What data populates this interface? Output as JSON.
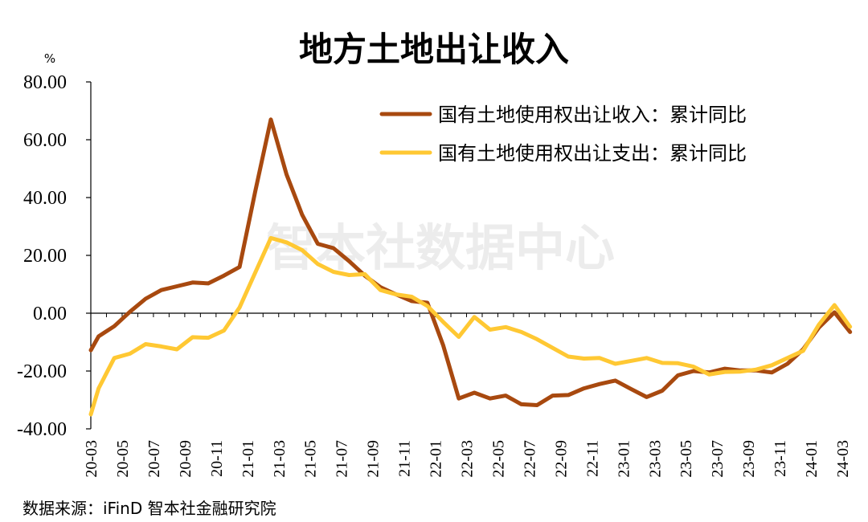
{
  "chart_data": {
    "type": "line",
    "title": "地方土地出让收入",
    "ylabel": "%",
    "xlabel": "",
    "ylim": [
      -40,
      80
    ],
    "yticks": [
      80,
      60,
      40,
      20,
      0,
      -20,
      -40
    ],
    "yticklabels": [
      "80.00",
      "60.00",
      "40.00",
      "20.00",
      "0.00",
      "-20.00",
      "-40.00"
    ],
    "xticklabels": [
      "20-03",
      "20-05",
      "20-07",
      "20-09",
      "20-11",
      "21-01",
      "21-03",
      "21-05",
      "21-07",
      "21-09",
      "21-11",
      "22-01",
      "22-03",
      "22-05",
      "22-07",
      "22-09",
      "22-11",
      "23-01",
      "23-03",
      "23-05",
      "23-07",
      "23-09",
      "23-11",
      "24-01",
      "24-03"
    ],
    "legend_position": "top-right",
    "grid": false,
    "series": [
      {
        "name": "国有土地使用权出让收入：累计同比",
        "color": "#A8490F",
        "points": [
          [
            0,
            -12.8
          ],
          [
            0.5,
            -8
          ],
          [
            1.5,
            -4.5
          ],
          [
            2.5,
            0.5
          ],
          [
            3.5,
            5
          ],
          [
            4.5,
            8
          ],
          [
            5.5,
            9.3
          ],
          [
            6.5,
            10.6
          ],
          [
            7.5,
            10.3
          ],
          [
            8.5,
            13
          ],
          [
            9.5,
            16
          ],
          [
            10.5,
            42
          ],
          [
            11.5,
            67
          ],
          [
            12.5,
            48
          ],
          [
            13.5,
            34
          ],
          [
            14.5,
            24
          ],
          [
            15.5,
            22.5
          ],
          [
            16.5,
            18
          ],
          [
            17.5,
            13
          ],
          [
            18.5,
            9
          ],
          [
            19.5,
            6.5
          ],
          [
            20.5,
            4.2
          ],
          [
            21.5,
            3.6
          ],
          [
            22.5,
            -11
          ],
          [
            23.5,
            -29.5
          ],
          [
            24.5,
            -27.5
          ],
          [
            25.5,
            -29.5
          ],
          [
            26.5,
            -28.5
          ],
          [
            27.5,
            -31.5
          ],
          [
            28.5,
            -31.8
          ],
          [
            29.5,
            -28.5
          ],
          [
            30.5,
            -28.3
          ],
          [
            31.5,
            -26
          ],
          [
            32.5,
            -24.5
          ],
          [
            33.5,
            -23.3
          ],
          [
            34.5,
            -26.2
          ],
          [
            35.5,
            -29
          ],
          [
            36.5,
            -26.8
          ],
          [
            37.5,
            -21.5
          ],
          [
            38.5,
            -20
          ],
          [
            39.5,
            -20.5
          ],
          [
            40.5,
            -19.2
          ],
          [
            41.5,
            -19.8
          ],
          [
            42.5,
            -19.8
          ],
          [
            43.5,
            -20.5
          ],
          [
            44.5,
            -17.5
          ],
          [
            45.5,
            -12.5
          ],
          [
            46.5,
            -5
          ],
          [
            47.5,
            0.3
          ],
          [
            48.5,
            -6.5
          ]
        ]
      },
      {
        "name": "国有土地使用权出让支出：累计同比",
        "color": "#FFC833",
        "points": [
          [
            0,
            -35
          ],
          [
            0.5,
            -26
          ],
          [
            1.5,
            -15.5
          ],
          [
            2.5,
            -14
          ],
          [
            3.5,
            -10.7
          ],
          [
            4.5,
            -11.5
          ],
          [
            5.5,
            -12.5
          ],
          [
            6.5,
            -8.3
          ],
          [
            7.5,
            -8.5
          ],
          [
            8.5,
            -6
          ],
          [
            9.5,
            2
          ],
          [
            10.5,
            14
          ],
          [
            11.5,
            26
          ],
          [
            12.5,
            24.5
          ],
          [
            13.5,
            21.8
          ],
          [
            14.5,
            17
          ],
          [
            15.5,
            14.3
          ],
          [
            16.5,
            13.2
          ],
          [
            17.5,
            13.5
          ],
          [
            18.5,
            8
          ],
          [
            19.5,
            6.5
          ],
          [
            20.5,
            5.7
          ],
          [
            21.5,
            2.5
          ],
          [
            22.5,
            -3
          ],
          [
            23.5,
            -8.2
          ],
          [
            24.5,
            -1.3
          ],
          [
            25.5,
            -5.7
          ],
          [
            26.5,
            -4.8
          ],
          [
            27.5,
            -6.5
          ],
          [
            28.5,
            -9
          ],
          [
            29.5,
            -12
          ],
          [
            30.5,
            -15
          ],
          [
            31.5,
            -15.7
          ],
          [
            32.5,
            -15.5
          ],
          [
            33.5,
            -17.5
          ],
          [
            34.5,
            -16.5
          ],
          [
            35.5,
            -15.5
          ],
          [
            36.5,
            -17.2
          ],
          [
            37.5,
            -17.3
          ],
          [
            38.5,
            -18.5
          ],
          [
            39.5,
            -21.2
          ],
          [
            40.5,
            -20.3
          ],
          [
            41.5,
            -20.2
          ],
          [
            42.5,
            -19.5
          ],
          [
            43.5,
            -18
          ],
          [
            44.5,
            -15.5
          ],
          [
            45.5,
            -13
          ],
          [
            46.5,
            -4
          ],
          [
            47.5,
            2.8
          ],
          [
            48.5,
            -4.7
          ]
        ]
      }
    ]
  },
  "watermark": "智本社数据中心",
  "source": "数据来源：iFinD 智本社金融研究院"
}
